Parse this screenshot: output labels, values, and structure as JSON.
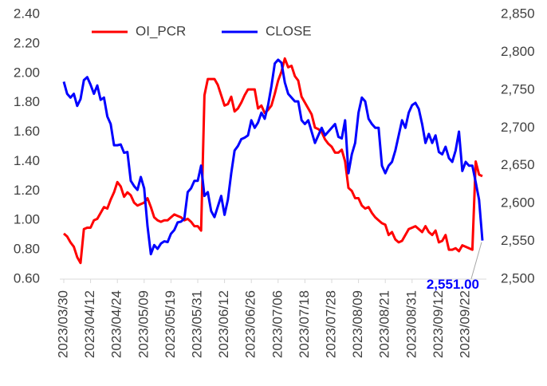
{
  "chart_data": {
    "type": "line",
    "categories": [
      "2023/03/30",
      null,
      null,
      null,
      null,
      null,
      null,
      null,
      "2023/04/12",
      null,
      null,
      null,
      null,
      null,
      null,
      null,
      "2023/04/24",
      null,
      null,
      null,
      null,
      null,
      null,
      null,
      "2023/05/09",
      null,
      null,
      null,
      null,
      null,
      null,
      null,
      "2023/05/19",
      null,
      null,
      null,
      null,
      null,
      null,
      null,
      "2023/05/31",
      null,
      null,
      null,
      null,
      null,
      null,
      null,
      "2023/06/12",
      null,
      null,
      null,
      null,
      null,
      null,
      null,
      "2023/06/26",
      null,
      null,
      null,
      null,
      null,
      null,
      null,
      "2023/07/06",
      null,
      null,
      null,
      null,
      null,
      null,
      null,
      "2023/07/18",
      null,
      null,
      null,
      null,
      null,
      null,
      null,
      "2023/07/28",
      null,
      null,
      null,
      null,
      null,
      null,
      null,
      "2023/08/09",
      null,
      null,
      null,
      null,
      null,
      null,
      null,
      "2023/08/21",
      null,
      null,
      null,
      null,
      null,
      null,
      null,
      "2023/08/31",
      null,
      null,
      null,
      null,
      null,
      null,
      null,
      "2023/09/12",
      null,
      null,
      null,
      null,
      null,
      null,
      null,
      "2023/09/22",
      null,
      null,
      null,
      null,
      null
    ],
    "series": [
      {
        "name": "OI_PCR",
        "color": "#ff0000",
        "axis": "y",
        "values": [
          0.91,
          0.89,
          0.85,
          0.82,
          0.75,
          0.71,
          0.94,
          0.95,
          0.95,
          1.0,
          1.01,
          1.05,
          1.09,
          1.08,
          1.14,
          1.19,
          1.26,
          1.23,
          1.16,
          1.19,
          1.17,
          1.12,
          1.1,
          1.11,
          1.12,
          1.15,
          1.09,
          1.02,
          1.0,
          0.99,
          1.0,
          1.0,
          1.02,
          1.04,
          1.03,
          1.02,
          1.0,
          1.01,
          0.99,
          0.96,
          0.96,
          0.93,
          1.85,
          1.96,
          1.96,
          1.96,
          1.92,
          1.85,
          1.78,
          1.79,
          1.84,
          1.74,
          1.76,
          1.8,
          1.85,
          1.89,
          1.89,
          1.89,
          1.76,
          1.78,
          1.73,
          1.75,
          1.78,
          1.86,
          1.95,
          2.01,
          2.1,
          2.04,
          2.05,
          1.98,
          1.95,
          1.84,
          1.8,
          1.76,
          1.72,
          1.63,
          1.62,
          1.6,
          1.55,
          1.52,
          1.5,
          1.46,
          1.46,
          1.48,
          1.4,
          1.22,
          1.2,
          1.15,
          1.15,
          1.1,
          1.08,
          1.09,
          1.05,
          1.02,
          1.0,
          0.98,
          0.97,
          0.9,
          0.92,
          0.87,
          0.85,
          0.86,
          0.9,
          0.94,
          0.95,
          0.96,
          0.94,
          0.92,
          0.96,
          0.92,
          0.9,
          0.93,
          0.85,
          0.86,
          0.9,
          0.8,
          0.8,
          0.81,
          0.79,
          0.83,
          0.82,
          0.81,
          0.8,
          1.4,
          1.31,
          1.3
        ]
      },
      {
        "name": "CLOSE",
        "color": "#0000ff",
        "axis": "y2",
        "values": [
          2761,
          2745,
          2740,
          2745,
          2729,
          2738,
          2763,
          2767,
          2757,
          2745,
          2756,
          2737,
          2740,
          2715,
          2705,
          2677,
          2677,
          2678,
          2667,
          2668,
          2630,
          2623,
          2618,
          2635,
          2620,
          2570,
          2533,
          2545,
          2540,
          2547,
          2550,
          2549,
          2560,
          2565,
          2575,
          2576,
          2580,
          2615,
          2620,
          2630,
          2630,
          2650,
          2610,
          2615,
          2590,
          2582,
          2596,
          2610,
          2585,
          2605,
          2640,
          2670,
          2676,
          2685,
          2687,
          2690,
          2710,
          2700,
          2707,
          2720,
          2712,
          2730,
          2755,
          2785,
          2790,
          2786,
          2760,
          2745,
          2740,
          2735,
          2735,
          2710,
          2705,
          2710,
          2695,
          2680,
          2690,
          2700,
          2690,
          2695,
          2700,
          2705,
          2688,
          2686,
          2710,
          2640,
          2665,
          2680,
          2720,
          2740,
          2735,
          2712,
          2705,
          2700,
          2700,
          2650,
          2640,
          2650,
          2655,
          2670,
          2690,
          2710,
          2700,
          2720,
          2730,
          2733,
          2725,
          2705,
          2680,
          2692,
          2680,
          2690,
          2668,
          2665,
          2675,
          2660,
          2655,
          2670,
          2695,
          2643,
          2655,
          2650,
          2650,
          2628,
          2605,
          2551
        ],
        "value_labels": [
          null,
          null,
          null,
          null,
          null,
          null,
          null,
          null,
          null,
          null,
          null,
          null,
          null,
          null,
          null,
          null,
          null,
          null,
          null,
          null,
          null,
          null,
          null,
          null,
          null,
          null,
          null,
          null,
          null,
          null,
          null,
          null,
          null,
          null,
          null,
          null,
          null,
          null,
          null,
          null,
          null,
          null,
          null,
          null,
          null,
          null,
          null,
          null,
          null,
          null,
          null,
          null,
          null,
          null,
          null,
          null,
          null,
          null,
          null,
          null,
          null,
          null,
          null,
          null,
          null,
          null,
          null,
          null,
          null,
          null,
          null,
          null,
          null,
          null,
          null,
          null,
          null,
          null,
          null,
          null,
          null,
          null,
          null,
          null,
          null,
          null,
          null,
          null,
          null,
          null,
          null,
          null,
          null,
          null,
          null,
          null,
          null,
          null,
          null,
          null,
          null,
          null,
          null,
          null,
          null,
          null,
          null,
          null,
          null,
          null,
          null,
          null,
          null,
          null,
          null,
          null,
          null,
          null,
          null,
          null,
          null,
          null,
          null,
          null,
          null,
          "2,551.00"
        ]
      }
    ],
    "ylim": [
      0.6,
      2.4
    ],
    "yticks": [
      {
        "value": 0.6,
        "label": "0.60"
      },
      {
        "value": 0.8,
        "label": "0.80"
      },
      {
        "value": 1.0,
        "label": "1.00"
      },
      {
        "value": 1.2,
        "label": "1.20"
      },
      {
        "value": 1.4,
        "label": "1.40"
      },
      {
        "value": 1.6,
        "label": "1.60"
      },
      {
        "value": 1.8,
        "label": "1.80"
      },
      {
        "value": 2.0,
        "label": "2.00"
      },
      {
        "value": 2.2,
        "label": "2.20"
      },
      {
        "value": 2.4,
        "label": "2.40"
      }
    ],
    "y2lim": [
      2500,
      2850
    ],
    "y2ticks": [
      {
        "value": 2500,
        "label": "2,500"
      },
      {
        "value": 2550,
        "label": "2,550"
      },
      {
        "value": 2600,
        "label": "2,600"
      },
      {
        "value": 2650,
        "label": "2,650"
      },
      {
        "value": 2700,
        "label": "2,700"
      },
      {
        "value": 2750,
        "label": "2,750"
      },
      {
        "value": 2800,
        "label": "2,800"
      },
      {
        "value": 2850,
        "label": "2,850"
      }
    ],
    "grid": false,
    "legend": "top"
  }
}
